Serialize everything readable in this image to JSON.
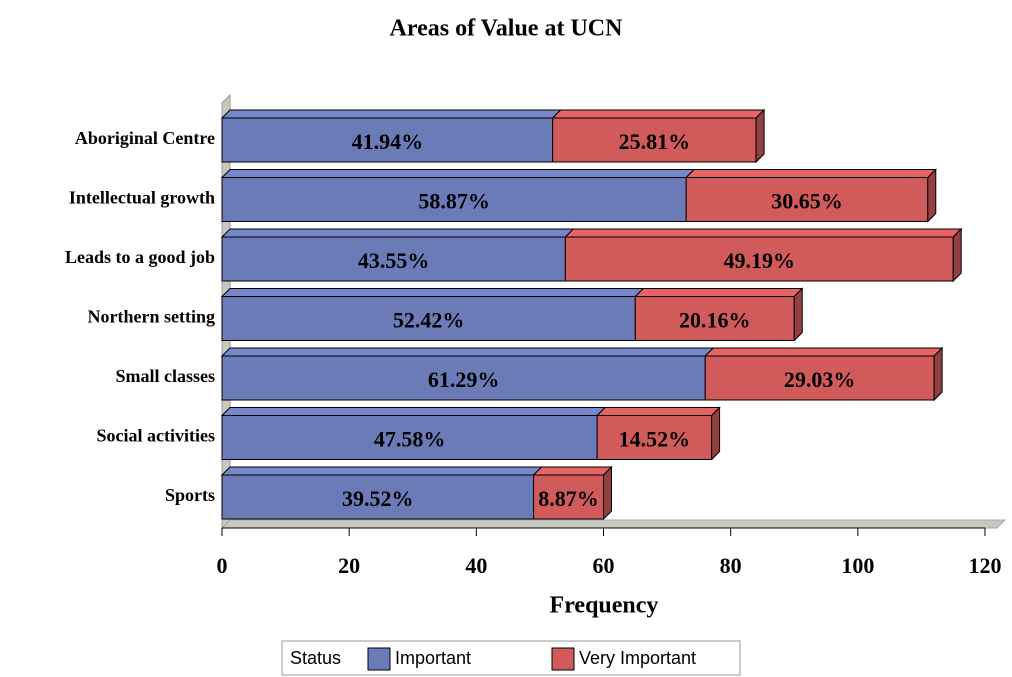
{
  "chart_data": {
    "type": "stacked-bar-horizontal",
    "title": "Areas of Value at UCN",
    "x_label": "Frequency",
    "categories": [
      "Aboriginal Centre",
      "Intellectual growth",
      "Leads to a good job",
      "Northern setting",
      "Small classes",
      "Social activities",
      "Sports"
    ],
    "legend_title": "Status",
    "series": [
      {
        "name": "Important",
        "color": "#6b7bb8",
        "values": [
          52,
          73,
          54,
          65,
          76,
          59,
          49
        ],
        "value_labels": [
          "41.94%",
          "58.87%",
          "43.55%",
          "52.42%",
          "61.29%",
          "47.58%",
          "39.52%"
        ]
      },
      {
        "name": "Very Important",
        "color": "#d15b5b",
        "values": [
          32,
          38,
          61,
          25,
          36,
          18,
          11
        ],
        "value_labels": [
          "25.81%",
          "30.65%",
          "49.19%",
          "20.16%",
          "29.03%",
          "14.52%",
          "8.87%"
        ]
      }
    ],
    "xlim": [
      0,
      120
    ],
    "xticks": [
      0,
      20,
      40,
      60,
      80,
      100,
      120
    ],
    "legend": "bottom"
  }
}
